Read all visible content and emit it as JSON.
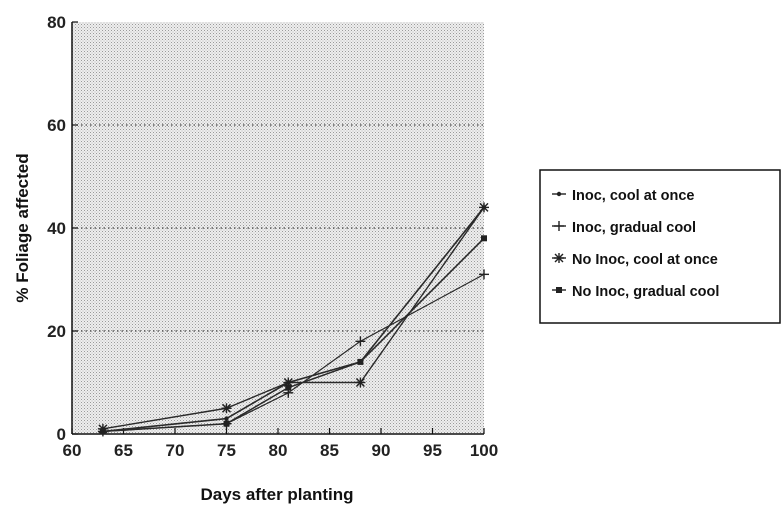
{
  "chart_data": {
    "type": "line",
    "title": "",
    "xlabel": "Days after planting",
    "ylabel": "% Foliage affected",
    "xlim": [
      60,
      100
    ],
    "ylim": [
      0,
      80
    ],
    "xticks": [
      60,
      65,
      70,
      75,
      80,
      85,
      90,
      95,
      100
    ],
    "yticks": [
      0,
      20,
      40,
      60,
      80
    ],
    "grid": "dotted horizontal lines at 20, 40, 60; stippled gray plot background",
    "legend_position": "right",
    "series": [
      {
        "name": "Inoc, cool at once",
        "marker": "dot",
        "x": [
          63,
          75,
          81,
          88,
          100
        ],
        "y": [
          0.5,
          3,
          10,
          14,
          44
        ]
      },
      {
        "name": "Inoc, gradual cool",
        "marker": "plus",
        "x": [
          63,
          75,
          81,
          88,
          100
        ],
        "y": [
          0.5,
          2,
          8,
          18,
          31
        ]
      },
      {
        "name": "No Inoc, cool at once",
        "marker": "asterisk",
        "x": [
          63,
          75,
          81,
          88,
          100
        ],
        "y": [
          1,
          5,
          10,
          10,
          44
        ]
      },
      {
        "name": "No Inoc, gradual cool",
        "marker": "square",
        "x": [
          63,
          75,
          81,
          88,
          100
        ],
        "y": [
          0.5,
          2,
          9,
          14,
          38
        ]
      }
    ]
  }
}
